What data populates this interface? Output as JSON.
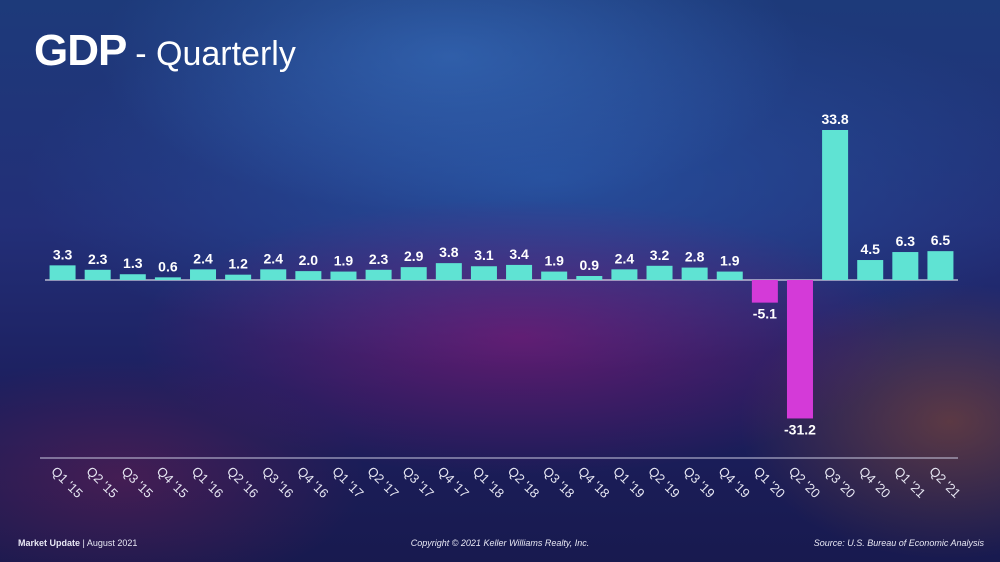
{
  "title": {
    "main": "GDP",
    "sub": "- Quarterly"
  },
  "colors": {
    "positive": "#5fe3d3",
    "negative": "#d43ad8",
    "axis": "#ffffff",
    "label": "#ffffff"
  },
  "chart_data": {
    "type": "bar",
    "title": "GDP - Quarterly",
    "xlabel": "",
    "ylabel": "",
    "ylim": [
      -31.2,
      33.8
    ],
    "grid": false,
    "categories": [
      "Q1 '15",
      "Q2 '15",
      "Q3 '15",
      "Q4 '15",
      "Q1 '16",
      "Q2 '16",
      "Q3 '16",
      "Q4 '16",
      "Q1 '17",
      "Q2 '17",
      "Q3 '17",
      "Q4 '17",
      "Q1 '18",
      "Q2 '18",
      "Q3 '18",
      "Q4 '18",
      "Q1 '19",
      "Q2 '19",
      "Q3 '19",
      "Q4 '19",
      "Q1 '20",
      "Q2 '20",
      "Q3 '20",
      "Q4 '20",
      "Q1 '21",
      "Q2 '21"
    ],
    "values": [
      3.3,
      2.3,
      1.3,
      0.6,
      2.4,
      1.2,
      2.4,
      2.0,
      1.9,
      2.3,
      2.9,
      3.8,
      3.1,
      3.4,
      1.9,
      0.9,
      2.4,
      3.2,
      2.8,
      1.9,
      -5.1,
      -31.2,
      33.8,
      4.5,
      6.3,
      6.5
    ],
    "value_labels": [
      "3.3",
      "2.3",
      "1.3",
      "0.6",
      "2.4",
      "1.2",
      "2.4",
      "2.0",
      "1.9",
      "2.3",
      "2.9",
      "3.8",
      "3.1",
      "3.4",
      "1.9",
      "0.9",
      "2.4",
      "3.2",
      "2.8",
      "1.9",
      "-5.1",
      "-31.2",
      "33.8",
      "4.5",
      "6.3",
      "6.5"
    ]
  },
  "footer": {
    "left_bold": "Market Update",
    "left_sep": "|",
    "left_date": "August 2021",
    "center": "Copyright © 2021 Keller Williams Realty, Inc.",
    "right": "Source: U.S. Bureau of Economic Analysis"
  }
}
